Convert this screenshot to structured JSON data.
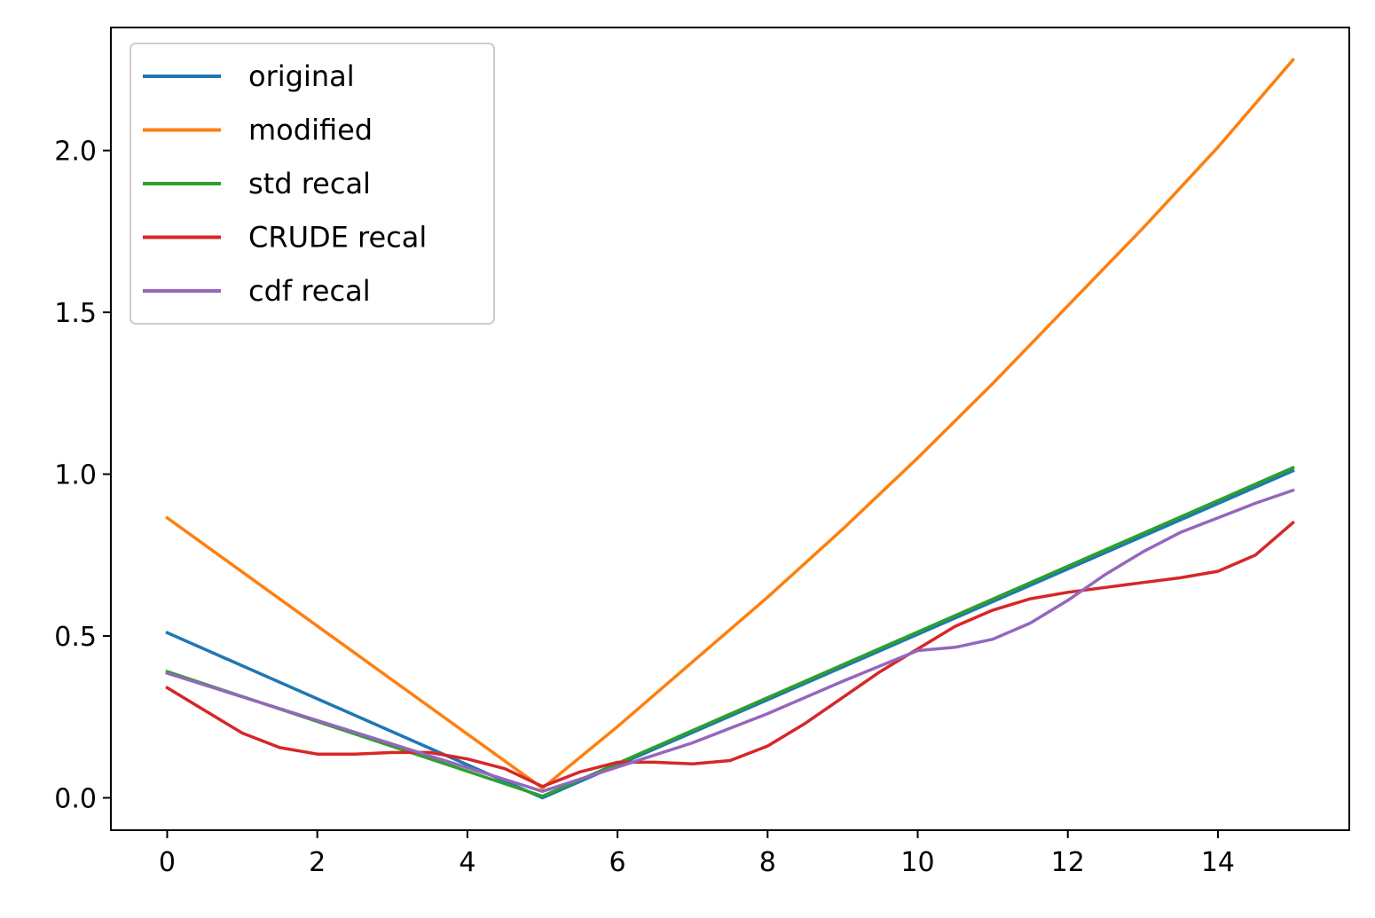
{
  "chart_data": {
    "type": "line",
    "title": "",
    "xlabel": "",
    "ylabel": "",
    "xlim": [
      -0.75,
      15.75
    ],
    "ylim": [
      -0.1,
      2.38
    ],
    "xticks": [
      0,
      2,
      4,
      6,
      8,
      10,
      12,
      14
    ],
    "yticks": [
      0.0,
      0.5,
      1.0,
      1.5,
      2.0
    ],
    "xtick_labels": [
      "0",
      "2",
      "4",
      "6",
      "8",
      "10",
      "12",
      "14"
    ],
    "ytick_labels": [
      "0.0",
      "0.5",
      "1.0",
      "1.5",
      "2.0"
    ],
    "grid": false,
    "legend_position": "upper left",
    "series": [
      {
        "name": "original",
        "color": "#1f77b4",
        "x": [
          0,
          5,
          15
        ],
        "y": [
          0.51,
          0.0,
          1.01
        ]
      },
      {
        "name": "modified",
        "color": "#ff7f0e",
        "x": [
          0,
          5,
          6,
          7,
          8,
          9,
          10,
          11,
          12,
          13,
          14,
          15
        ],
        "y": [
          0.865,
          0.03,
          0.22,
          0.42,
          0.62,
          0.83,
          1.05,
          1.28,
          1.52,
          1.76,
          2.01,
          2.28
        ]
      },
      {
        "name": "std recal",
        "color": "#2ca02c",
        "x": [
          0,
          5,
          15
        ],
        "y": [
          0.39,
          0.005,
          1.02
        ]
      },
      {
        "name": "CRUDE recal",
        "color": "#d62728",
        "x": [
          0,
          0.5,
          1,
          1.5,
          2,
          2.5,
          3,
          3.5,
          4,
          4.5,
          5,
          5.5,
          6,
          6.5,
          7,
          7.5,
          8,
          8.5,
          9,
          9.5,
          10,
          10.5,
          11,
          11.5,
          12,
          12.5,
          13,
          13.5,
          14,
          14.5,
          15
        ],
        "y": [
          0.34,
          0.27,
          0.2,
          0.155,
          0.135,
          0.135,
          0.14,
          0.14,
          0.12,
          0.09,
          0.035,
          0.08,
          0.11,
          0.11,
          0.105,
          0.115,
          0.16,
          0.23,
          0.31,
          0.39,
          0.46,
          0.53,
          0.58,
          0.615,
          0.635,
          0.65,
          0.665,
          0.68,
          0.7,
          0.75,
          0.85
        ]
      },
      {
        "name": "cdf recal",
        "color": "#9467bd",
        "x": [
          0,
          5,
          6,
          7,
          8,
          9,
          10,
          10.5,
          11,
          11.5,
          12,
          12.5,
          13,
          13.5,
          14,
          14.5,
          15
        ],
        "y": [
          0.385,
          0.02,
          0.095,
          0.17,
          0.26,
          0.36,
          0.455,
          0.465,
          0.49,
          0.54,
          0.61,
          0.69,
          0.76,
          0.82,
          0.865,
          0.91,
          0.95
        ]
      }
    ]
  }
}
